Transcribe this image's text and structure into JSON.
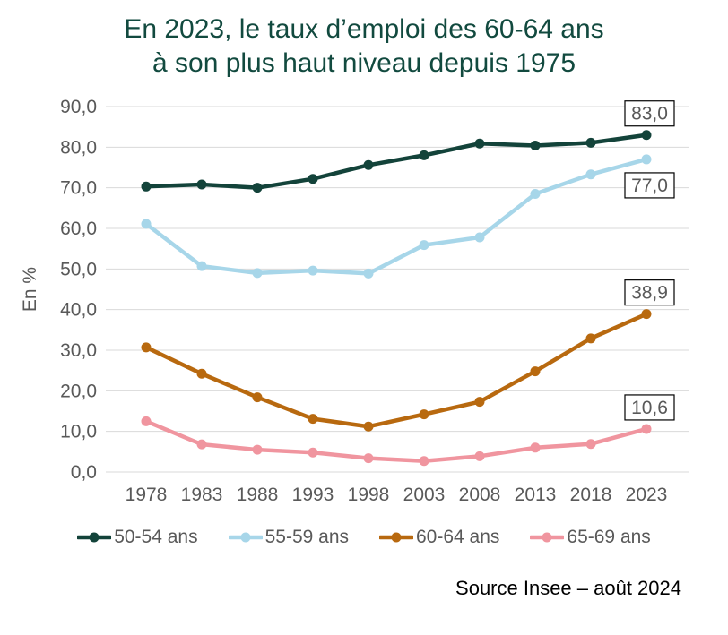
{
  "title": {
    "line1": "En 2023, le taux d’emploi des 60-64 ans",
    "line2": "à son plus haut niveau depuis 1975"
  },
  "colors": {
    "title": "#124a3f",
    "axis_text": "#595959",
    "gridline": "#d9d9d9",
    "label_box_border": "#000000",
    "label_box_fill": "#ffffff",
    "source_text": "#000000"
  },
  "chart_data": {
    "type": "line",
    "x": [
      "1978",
      "1983",
      "1988",
      "1993",
      "1998",
      "2003",
      "2008",
      "2013",
      "2018",
      "2023"
    ],
    "series": [
      {
        "name": "50-54 ans",
        "color": "#13433a",
        "values": [
          70.3,
          70.8,
          70.0,
          72.2,
          75.6,
          78.0,
          80.9,
          80.4,
          81.1,
          83.0
        ],
        "end_label": "83,0"
      },
      {
        "name": "55-59 ans",
        "color": "#a7d6e9",
        "values": [
          61.1,
          50.7,
          49.0,
          49.6,
          48.9,
          55.9,
          57.8,
          68.5,
          73.3,
          77.0
        ],
        "end_label": "77,0"
      },
      {
        "name": "60-64 ans",
        "color": "#b8690f",
        "values": [
          30.7,
          24.2,
          18.4,
          13.1,
          11.2,
          14.2,
          17.3,
          24.8,
          32.9,
          38.9
        ],
        "end_label": "38,9"
      },
      {
        "name": "65-69 ans",
        "color": "#f0959f",
        "values": [
          12.5,
          6.8,
          5.5,
          4.8,
          3.4,
          2.7,
          3.9,
          6.0,
          6.9,
          10.6
        ],
        "end_label": "10,6"
      }
    ],
    "ylabel": "En %",
    "ylim": [
      0,
      90
    ],
    "ytick_step": 10,
    "yticks": [
      "0,0",
      "10,0",
      "20,0",
      "30,0",
      "40,0",
      "50,0",
      "60,0",
      "70,0",
      "80,0",
      "90,0"
    ],
    "grid": "horizontal",
    "legend_position": "bottom"
  },
  "source": "Source Insee – août 2024"
}
